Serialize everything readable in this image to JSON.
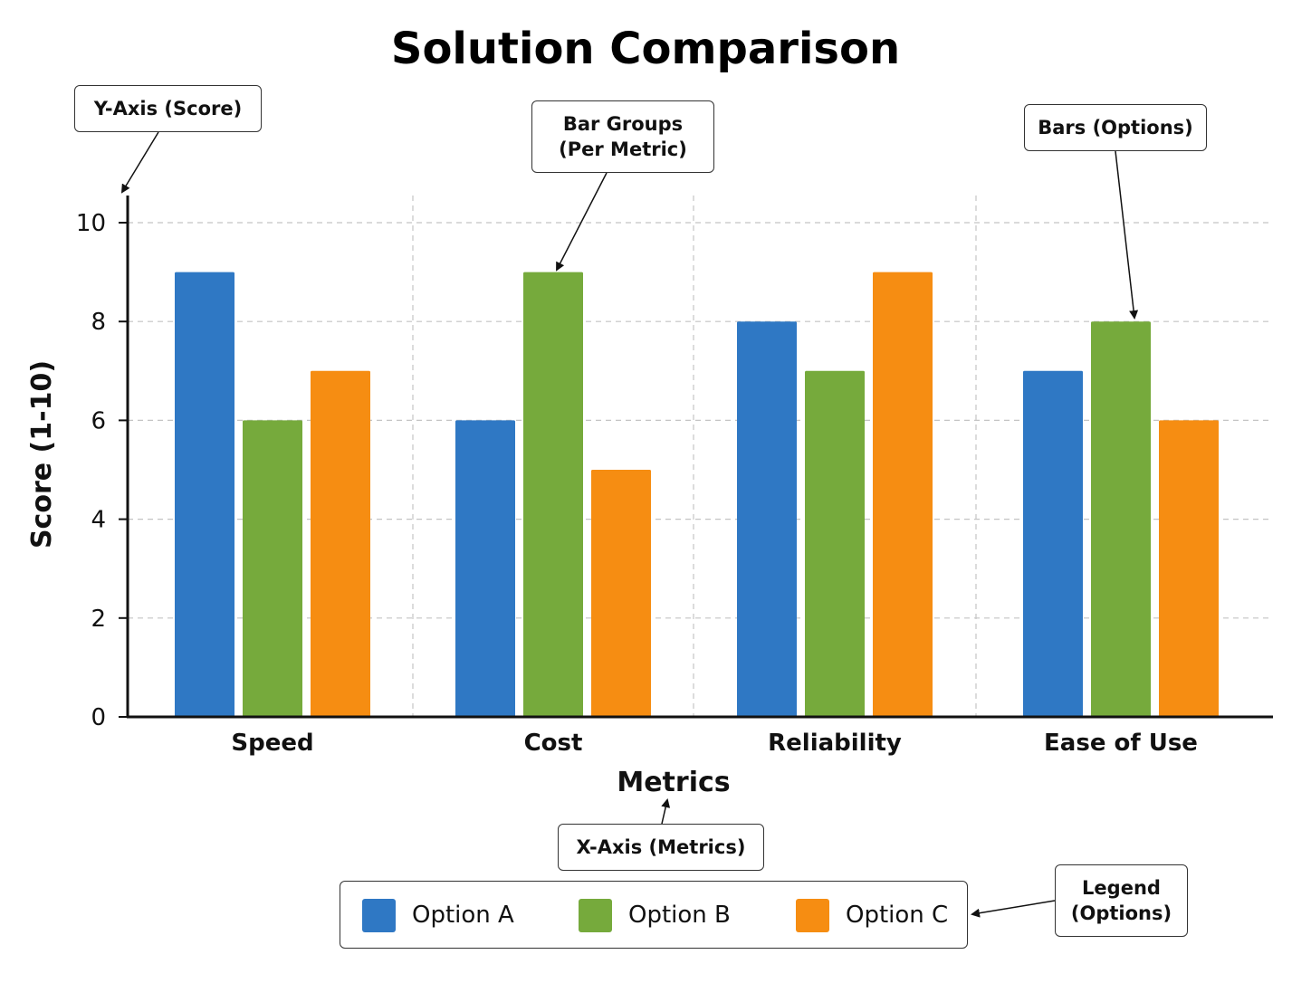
{
  "chart_data": {
    "type": "bar",
    "title": "Solution Comparison",
    "xlabel": "Metrics",
    "ylabel": "Score (1-10)",
    "categories": [
      "Speed",
      "Cost",
      "Reliability",
      "Ease of Use"
    ],
    "series": [
      {
        "name": "Option A",
        "color": "#2f78c4",
        "values": [
          9,
          6,
          8,
          7
        ]
      },
      {
        "name": "Option B",
        "color": "#76aa3c",
        "values": [
          6,
          9,
          7,
          8
        ]
      },
      {
        "name": "Option C",
        "color": "#f68d12",
        "values": [
          7,
          5,
          9,
          6
        ]
      }
    ],
    "ylim": [
      0,
      10
    ],
    "yticks": [
      "0",
      "2",
      "4",
      "6",
      "8",
      "10"
    ],
    "grid": true,
    "legend_position": "bottom"
  },
  "callouts": {
    "y_axis": "Y-Axis (Score)",
    "bar_groups": "Bar Groups\n(Per Metric)",
    "bars": "Bars (Options)",
    "x_axis": "X-Axis (Metrics)",
    "legend": "Legend\n(Options)"
  }
}
